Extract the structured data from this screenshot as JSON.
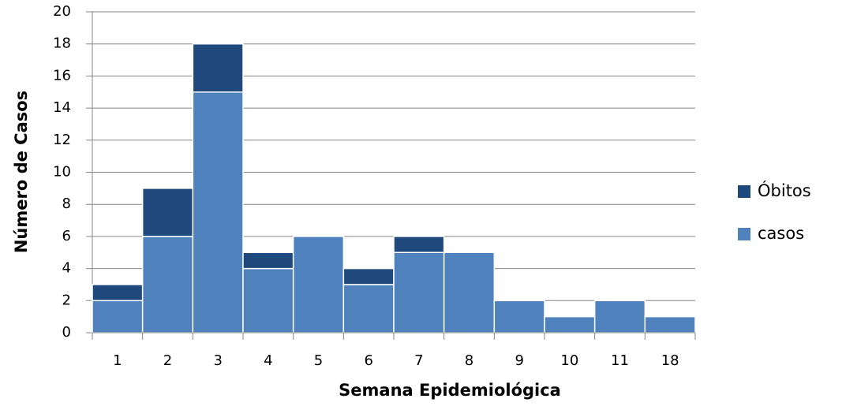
{
  "chart_data": {
    "type": "stacked_bar",
    "x_label": "Semana Epidemiológica",
    "y_label": "Número de Casos",
    "categories": [
      "1",
      "2",
      "3",
      "4",
      "5",
      "6",
      "7",
      "8",
      "9",
      "10",
      "11",
      "18"
    ],
    "series": [
      {
        "name": "casos",
        "color": "#4f81bd",
        "values": [
          2,
          6,
          15,
          4,
          6,
          3,
          5,
          5,
          2,
          1,
          2,
          1
        ]
      },
      {
        "name": "Óbitos",
        "color": "#1f497d",
        "values": [
          1,
          3,
          3,
          1,
          0,
          1,
          1,
          0,
          0,
          0,
          0,
          0
        ]
      }
    ],
    "ylim": [
      0,
      20
    ],
    "yticks": [
      0,
      2,
      4,
      6,
      8,
      10,
      12,
      14,
      16,
      18,
      20
    ],
    "grid": true,
    "legend": "right"
  }
}
